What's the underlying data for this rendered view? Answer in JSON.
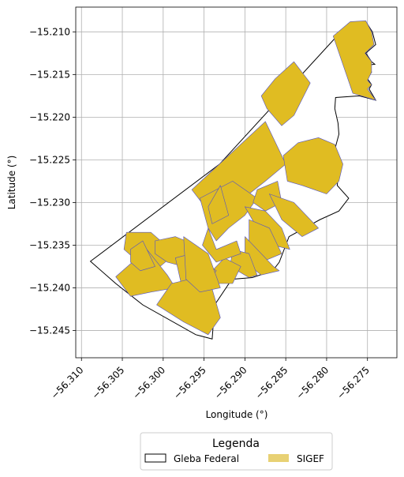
{
  "chart_data": {
    "type": "map",
    "xlabel": "Longitude (°)",
    "ylabel": "Latitude (°)",
    "xlim": [
      -56.3107,
      -56.2714
    ],
    "ylim": [
      -15.2482,
      -15.2071
    ],
    "xticks": [
      -56.31,
      -56.305,
      -56.3,
      -56.295,
      -56.29,
      -56.285,
      -56.28,
      -56.275
    ],
    "xtick_labels": [
      "−56.310",
      "−56.305",
      "−56.300",
      "−56.295",
      "−56.290",
      "−56.285",
      "−56.280",
      "−56.275"
    ],
    "yticks": [
      -15.21,
      -15.215,
      -15.22,
      -15.225,
      -15.23,
      -15.235,
      -15.24,
      -15.245
    ],
    "ytick_labels": [
      "−15.210",
      "−15.215",
      "−15.220",
      "−15.225",
      "−15.230",
      "−15.235",
      "−15.240",
      "−15.245"
    ],
    "grid": true,
    "legend": {
      "title": "Legenda",
      "position": "bottom-center",
      "items": [
        {
          "label": "Gleba Federal",
          "fill": "#ffffff",
          "stroke": "#000000"
        },
        {
          "label": "SIGEF",
          "fill": "#e8d174",
          "stroke": "#e8d174"
        }
      ]
    },
    "colors": {
      "sigef_fill": "#e0bc22",
      "sigef_edge": "#5252c8",
      "gleba_edge": "#000000",
      "grid": "#b0b0b0"
    },
    "gleba": [
      [
        -56.3089,
        -15.2369
      ],
      [
        -56.2931,
        -15.2255
      ],
      [
        -56.2773,
        -15.209
      ],
      [
        -56.2752,
        -15.2088
      ],
      [
        -56.2744,
        -15.21
      ],
      [
        -56.274,
        -15.2115
      ],
      [
        -56.2752,
        -15.2125
      ],
      [
        -56.2745,
        -15.2135
      ],
      [
        -56.2741,
        -15.2138
      ],
      [
        -56.2751,
        -15.2139
      ],
      [
        -56.2745,
        -15.2147
      ],
      [
        -56.275,
        -15.2155
      ],
      [
        -56.2745,
        -15.2162
      ],
      [
        -56.2748,
        -15.2167
      ],
      [
        -56.274,
        -15.218
      ],
      [
        -56.276,
        -15.2175
      ],
      [
        -56.2789,
        -15.2177
      ],
      [
        -56.279,
        -15.219
      ],
      [
        -56.2786,
        -15.2207
      ],
      [
        -56.2785,
        -15.222
      ],
      [
        -56.279,
        -15.2238
      ],
      [
        -56.2785,
        -15.226
      ],
      [
        -56.2787,
        -15.228
      ],
      [
        -56.2773,
        -15.2295
      ],
      [
        -56.2785,
        -15.231
      ],
      [
        -56.2808,
        -15.232
      ],
      [
        -56.2846,
        -15.234
      ],
      [
        -56.2858,
        -15.237
      ],
      [
        -56.2866,
        -15.238
      ],
      [
        -56.2891,
        -15.2388
      ],
      [
        -56.2916,
        -15.239
      ],
      [
        -56.2937,
        -15.242
      ],
      [
        -56.294,
        -15.246
      ],
      [
        -56.296,
        -15.2455
      ],
      [
        -56.3025,
        -15.242
      ],
      [
        -56.3058,
        -15.2395
      ]
    ],
    "sigef": [
      [
        [
          -56.2792,
          -15.2105
        ],
        [
          -56.2771,
          -15.2088
        ],
        [
          -56.2752,
          -15.2087
        ],
        [
          -56.2745,
          -15.21
        ],
        [
          -56.2742,
          -15.2115
        ],
        [
          -56.2753,
          -15.2125
        ],
        [
          -56.2745,
          -15.2135
        ],
        [
          -56.2745,
          -15.2147
        ],
        [
          -56.275,
          -15.2157
        ],
        [
          -56.2745,
          -15.2162
        ],
        [
          -56.275,
          -15.2167
        ],
        [
          -56.274,
          -15.218
        ],
        [
          -56.2768,
          -15.2172
        ]
      ],
      [
        [
          -56.2863,
          -15.2155
        ],
        [
          -56.284,
          -15.2135
        ],
        [
          -56.282,
          -15.216
        ],
        [
          -56.284,
          -15.2198
        ],
        [
          -56.2855,
          -15.221
        ],
        [
          -56.2873,
          -15.219
        ],
        [
          -56.288,
          -15.2175
        ]
      ],
      [
        [
          -56.2965,
          -15.2285
        ],
        [
          -56.2875,
          -15.2205
        ],
        [
          -56.285,
          -15.2255
        ],
        [
          -56.2875,
          -15.2275
        ],
        [
          -56.2895,
          -15.229
        ],
        [
          -56.292,
          -15.2295
        ],
        [
          -56.2945,
          -15.231
        ]
      ],
      [
        [
          -56.2955,
          -15.2295
        ],
        [
          -56.2915,
          -15.2275
        ],
        [
          -56.2885,
          -15.2295
        ],
        [
          -56.29,
          -15.2315
        ],
        [
          -56.292,
          -15.233
        ],
        [
          -56.2935,
          -15.2345
        ],
        [
          -56.2945,
          -15.233
        ]
      ],
      [
        [
          -56.2945,
          -15.2305
        ],
        [
          -56.293,
          -15.228
        ],
        [
          -56.292,
          -15.2315
        ],
        [
          -56.294,
          -15.2325
        ]
      ],
      [
        [
          -56.2885,
          -15.2285
        ],
        [
          -56.286,
          -15.2275
        ],
        [
          -56.2855,
          -15.23
        ],
        [
          -56.2875,
          -15.231
        ],
        [
          -56.289,
          -15.23
        ]
      ],
      [
        [
          -56.2853,
          -15.2245
        ],
        [
          -56.2848,
          -15.2275
        ],
        [
          -56.283,
          -15.228
        ],
        [
          -56.28,
          -15.229
        ],
        [
          -56.2785,
          -15.2275
        ],
        [
          -56.278,
          -15.2255
        ],
        [
          -56.279,
          -15.2232
        ],
        [
          -56.281,
          -15.2224
        ],
        [
          -56.2835,
          -15.223
        ]
      ],
      [
        [
          -56.287,
          -15.229
        ],
        [
          -56.284,
          -15.23
        ],
        [
          -56.281,
          -15.233
        ],
        [
          -56.283,
          -15.234
        ],
        [
          -56.2855,
          -15.232
        ]
      ],
      [
        [
          -56.29,
          -15.2305
        ],
        [
          -56.2875,
          -15.231
        ],
        [
          -56.2855,
          -15.233
        ],
        [
          -56.2845,
          -15.2355
        ],
        [
          -56.2865,
          -15.235
        ],
        [
          -56.2885,
          -15.233
        ]
      ],
      [
        [
          -56.2895,
          -15.232
        ],
        [
          -56.287,
          -15.233
        ],
        [
          -56.2855,
          -15.236
        ],
        [
          -56.288,
          -15.237
        ],
        [
          -56.2895,
          -15.235
        ]
      ],
      [
        [
          -56.29,
          -15.234
        ],
        [
          -56.288,
          -15.236
        ],
        [
          -56.2865,
          -15.2375
        ],
        [
          -56.2858,
          -15.238
        ],
        [
          -56.288,
          -15.2385
        ],
        [
          -56.29,
          -15.237
        ]
      ],
      [
        [
          -56.2915,
          -15.2355
        ],
        [
          -56.2895,
          -15.236
        ],
        [
          -56.2885,
          -15.2385
        ],
        [
          -56.2895,
          -15.2388
        ],
        [
          -56.2918,
          -15.2375
        ]
      ],
      [
        [
          -56.2925,
          -15.2365
        ],
        [
          -56.2905,
          -15.2375
        ],
        [
          -56.2915,
          -15.2395
        ],
        [
          -56.2935,
          -15.2395
        ],
        [
          -56.294,
          -15.238
        ]
      ],
      [
        [
          -56.3045,
          -15.2335
        ],
        [
          -56.3015,
          -15.2335
        ],
        [
          -56.2985,
          -15.236
        ],
        [
          -56.301,
          -15.238
        ],
        [
          -56.303,
          -15.237
        ],
        [
          -56.3048,
          -15.2355
        ]
      ],
      [
        [
          -56.301,
          -15.2345
        ],
        [
          -56.2985,
          -15.234
        ],
        [
          -56.296,
          -15.235
        ],
        [
          -56.2975,
          -15.2375
        ],
        [
          -56.2995,
          -15.237
        ],
        [
          -56.301,
          -15.236
        ]
      ],
      [
        [
          -56.2985,
          -15.2365
        ],
        [
          -56.2965,
          -15.236
        ],
        [
          -56.296,
          -15.2385
        ],
        [
          -56.2978,
          -15.2395
        ]
      ],
      [
        [
          -56.3058,
          -15.2387
        ],
        [
          -56.302,
          -15.2355
        ],
        [
          -56.2995,
          -15.2385
        ],
        [
          -56.2985,
          -15.24
        ],
        [
          -56.3015,
          -15.2405
        ],
        [
          -56.304,
          -15.241
        ]
      ],
      [
        [
          -56.295,
          -15.237
        ],
        [
          -56.2935,
          -15.238
        ],
        [
          -56.296,
          -15.241
        ],
        [
          -56.2975,
          -15.2405
        ],
        [
          -56.2965,
          -15.239
        ]
      ],
      [
        [
          -56.299,
          -15.2395
        ],
        [
          -56.2945,
          -15.2385
        ],
        [
          -56.293,
          -15.2435
        ],
        [
          -56.2945,
          -15.2455
        ],
        [
          -56.2975,
          -15.244
        ],
        [
          -56.3008,
          -15.242
        ]
      ],
      [
        [
          -56.2975,
          -15.234
        ],
        [
          -56.296,
          -15.235
        ],
        [
          -56.2945,
          -15.236
        ],
        [
          -56.293,
          -15.24
        ],
        [
          -56.2955,
          -15.2405
        ],
        [
          -56.2972,
          -15.239
        ]
      ],
      [
        [
          -56.2945,
          -15.233
        ],
        [
          -56.2935,
          -15.2355
        ],
        [
          -56.291,
          -15.2345
        ],
        [
          -56.2905,
          -15.236
        ],
        [
          -56.2935,
          -15.237
        ],
        [
          -56.2952,
          -15.235
        ]
      ],
      [
        [
          -56.304,
          -15.2355
        ],
        [
          -56.3025,
          -15.2345
        ],
        [
          -56.301,
          -15.2375
        ],
        [
          -56.3028,
          -15.238
        ],
        [
          -56.304,
          -15.237
        ]
      ]
    ]
  }
}
